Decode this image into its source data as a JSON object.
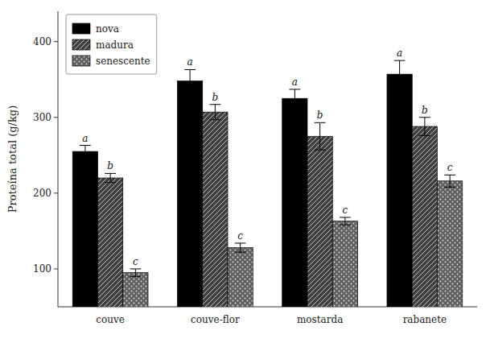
{
  "chart_data": {
    "type": "bar",
    "ylabel": "Proteína total (g/kg)",
    "categories": [
      "couve",
      "couve-flor",
      "mostarda",
      "rabanete"
    ],
    "series": [
      {
        "name": "nova",
        "color": "#000000",
        "values": [
          255,
          348,
          325,
          357
        ],
        "errors": [
          8,
          15,
          12,
          18
        ],
        "annotations": [
          "a",
          "a",
          "a",
          "a"
        ]
      },
      {
        "name": "madura",
        "color": "#404040",
        "values": [
          220,
          307,
          275,
          288
        ],
        "errors": [
          6,
          10,
          18,
          12
        ],
        "annotations": [
          "b",
          "b",
          "b",
          "b"
        ]
      },
      {
        "name": "senescente",
        "color": "#606060",
        "values": [
          95,
          128,
          163,
          216
        ],
        "errors": [
          5,
          6,
          5,
          8
        ],
        "annotations": [
          "c",
          "c",
          "c",
          "c"
        ]
      }
    ],
    "ylim": [
      50,
      440
    ],
    "yticks": [
      100,
      200,
      300,
      400
    ],
    "grid": false,
    "legend": "upper left"
  }
}
